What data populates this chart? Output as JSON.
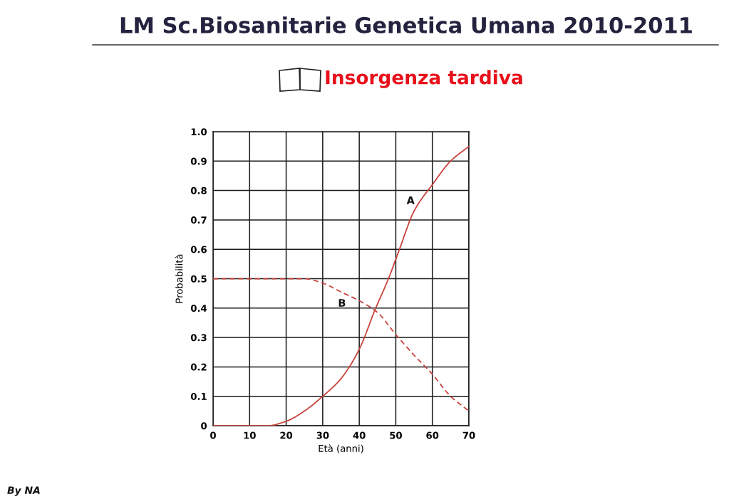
{
  "chart_data": {
    "type": "line",
    "title": "LM Sc.Biosanitarie Genetica Umana 2010-2011",
    "subtitle": "Insorgenza tardiva",
    "xlabel": "Età (anni)",
    "ylabel": "Probabilità",
    "xlim": [
      0,
      70
    ],
    "ylim": [
      0,
      1
    ],
    "xticks": [
      0,
      10,
      20,
      30,
      40,
      50,
      60,
      70
    ],
    "yticks": [
      0,
      0.1,
      0.2,
      0.3,
      0.4,
      0.5,
      0.6,
      0.7,
      0.8,
      0.9,
      {
        "value": 1,
        "label": "1.0"
      }
    ],
    "grid": true,
    "annotations": [
      "By NA"
    ],
    "series": [
      {
        "name": "A",
        "color": "#c8443e",
        "line_style": "solid",
        "x": [
          0,
          10,
          15,
          20,
          25,
          30,
          35,
          40,
          44.5,
          48,
          51,
          55,
          60,
          65,
          70
        ],
        "values": [
          0,
          0,
          0,
          0.015,
          0.05,
          0.1,
          0.16,
          0.26,
          0.4,
          0.5,
          0.6,
          0.73,
          0.82,
          0.9,
          0.95
        ]
      },
      {
        "name": "B",
        "color": "#c8443e",
        "line_style": "dashed",
        "x": [
          0,
          10,
          20,
          25,
          30,
          35,
          40,
          45,
          50,
          55,
          60,
          65,
          70
        ],
        "values": [
          0.5,
          0.5,
          0.5,
          0.5,
          0.485,
          0.455,
          0.425,
          0.385,
          0.31,
          0.24,
          0.175,
          0.1,
          0.05
        ]
      }
    ]
  }
}
